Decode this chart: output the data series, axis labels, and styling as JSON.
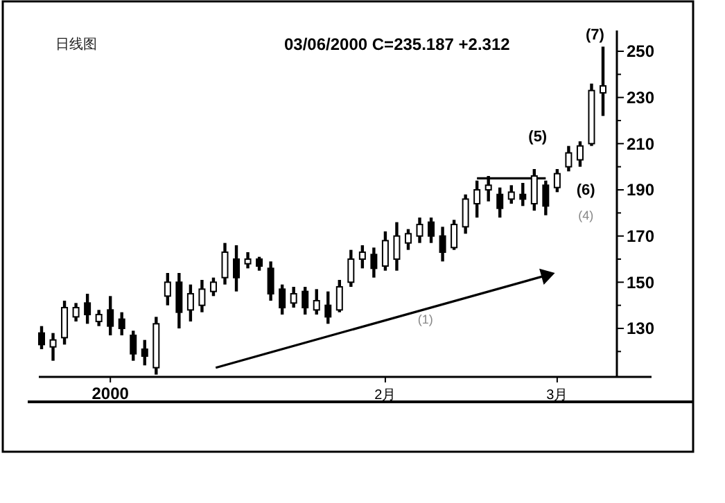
{
  "chart_data": {
    "type": "candlestick",
    "title": "日线图",
    "subtitle": "03/06/2000  C=235.187  +2.312",
    "categories": [
      null,
      null,
      null,
      null,
      null,
      null,
      "2000",
      null,
      null,
      null,
      null,
      null,
      null,
      null,
      null,
      null,
      null,
      null,
      null,
      null,
      null,
      null,
      null,
      null,
      null,
      null,
      null,
      null,
      null,
      null,
      "2月",
      null,
      null,
      null,
      null,
      null,
      null,
      null,
      null,
      null,
      null,
      null,
      null,
      null,
      null,
      "3月",
      null,
      null,
      null,
      null
    ],
    "ohlc": [
      [
        128,
        131,
        121,
        123
      ],
      [
        122,
        128,
        116,
        125
      ],
      [
        126,
        142,
        123,
        139
      ],
      [
        135,
        141,
        133,
        139
      ],
      [
        141,
        145,
        132,
        136
      ],
      [
        133,
        138,
        131,
        136
      ],
      [
        138,
        144,
        127,
        131
      ],
      [
        134,
        137,
        127,
        130
      ],
      [
        127,
        129,
        116,
        119
      ],
      [
        121,
        125,
        114,
        118
      ],
      [
        113,
        135,
        110,
        132
      ],
      [
        144,
        154,
        140,
        150
      ],
      [
        150,
        154,
        130,
        137
      ],
      [
        138,
        149,
        133,
        145
      ],
      [
        140,
        151,
        137,
        147
      ],
      [
        146,
        152,
        144,
        150
      ],
      [
        152,
        167,
        149,
        163
      ],
      [
        160,
        166,
        146,
        152
      ],
      [
        158,
        163,
        156,
        160
      ],
      [
        160,
        161,
        155,
        157
      ],
      [
        156,
        159,
        142,
        145
      ],
      [
        147,
        149,
        136,
        139
      ],
      [
        141,
        148,
        139,
        145
      ],
      [
        146,
        148,
        136,
        139
      ],
      [
        138,
        147,
        136,
        142
      ],
      [
        140,
        146,
        132,
        135
      ],
      [
        138,
        151,
        137,
        148
      ],
      [
        150,
        164,
        148,
        160
      ],
      [
        160,
        166,
        156,
        163
      ],
      [
        162,
        165,
        152,
        156
      ],
      [
        157,
        172,
        155,
        168
      ],
      [
        160,
        176,
        155,
        170
      ],
      [
        167,
        173,
        164,
        171
      ],
      [
        170,
        178,
        167,
        175
      ],
      [
        176,
        178,
        167,
        170
      ],
      [
        170,
        174,
        159,
        163
      ],
      [
        165,
        177,
        164,
        175
      ],
      [
        174,
        188,
        171,
        186
      ],
      [
        184,
        194,
        178,
        190
      ],
      [
        190,
        196,
        185,
        192
      ],
      [
        188,
        191,
        178,
        182
      ],
      [
        186,
        192,
        184,
        189
      ],
      [
        188,
        193,
        183,
        186
      ],
      [
        184,
        199,
        181,
        196
      ],
      [
        192,
        194,
        179,
        183
      ],
      [
        191,
        199,
        189,
        197
      ],
      [
        200,
        209,
        198,
        206
      ],
      [
        203,
        211,
        200,
        209
      ],
      [
        210,
        236,
        209,
        233
      ],
      [
        232,
        252,
        222,
        235
      ]
    ],
    "series": [
      {
        "type": "line",
        "color": "#000000",
        "values": [
          null,
          null,
          null,
          null,
          null,
          null,
          null,
          null,
          null,
          null,
          null,
          null,
          null,
          null,
          null,
          null,
          null,
          null,
          null,
          null,
          null,
          null,
          null,
          null,
          null,
          null,
          null,
          null,
          null,
          null,
          null,
          null,
          null,
          null,
          null,
          null,
          null,
          null,
          195,
          195,
          195,
          195,
          195,
          195,
          195,
          null,
          null,
          null,
          null,
          null
        ]
      }
    ],
    "ylim": [
      109,
      259
    ],
    "yticks": [
      {
        "value": 120,
        "label": null
      },
      130,
      {
        "value": 140,
        "label": null
      },
      150,
      {
        "value": 160,
        "label": null
      },
      170,
      {
        "value": 180,
        "label": null
      },
      190,
      {
        "value": 200,
        "label": null
      },
      210,
      {
        "value": 220,
        "label": null
      },
      230,
      {
        "value": 240,
        "label": null
      },
      250
    ],
    "annotations": [
      "(7)",
      "(5)",
      "(6)",
      "(4)",
      "(1)"
    ],
    "grid": false
  }
}
